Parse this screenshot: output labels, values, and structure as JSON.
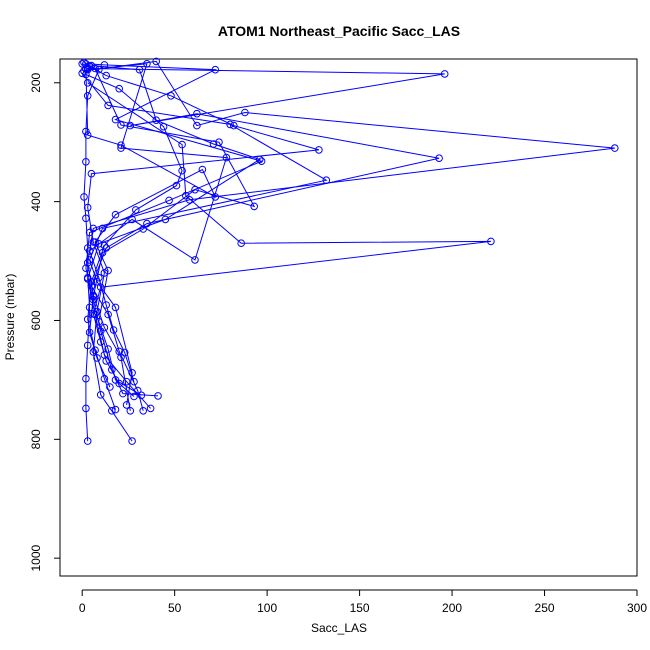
{
  "chart_data": {
    "type": "line",
    "title": "ATOM1 Northeast_Pacific Sacc_LAS",
    "xlabel": "Sacc_LAS",
    "ylabel": "Pressure (mbar)",
    "xlim": [
      -12,
      300
    ],
    "ylim": [
      1030,
      160
    ],
    "y_reversed": true,
    "x_ticks": [
      0,
      50,
      100,
      150,
      200,
      250,
      300
    ],
    "y_ticks": [
      200,
      400,
      600,
      800,
      1000
    ],
    "grid": false,
    "legend": "none",
    "colors": {
      "series": "#0000ff",
      "axis": "#000000"
    },
    "series": [
      {
        "points": [
          [
            0,
            168
          ],
          [
            9,
            178
          ],
          [
            3,
            222
          ],
          [
            2,
            282
          ],
          [
            2,
            333
          ],
          [
            1,
            392
          ],
          [
            2,
            428
          ],
          [
            3,
            478
          ],
          [
            3,
            528
          ],
          [
            4,
            578
          ],
          [
            3,
            642
          ],
          [
            2,
            698
          ],
          [
            2,
            748
          ],
          [
            3,
            803
          ]
        ]
      },
      {
        "points": [
          [
            4,
            172
          ],
          [
            13,
            188
          ],
          [
            48,
            222
          ],
          [
            82,
            272
          ],
          [
            128,
            313
          ],
          [
            5,
            353
          ],
          [
            3,
            410
          ],
          [
            6,
            468
          ],
          [
            12,
            520
          ],
          [
            8,
            585
          ],
          [
            6,
            653
          ],
          [
            10,
            725
          ],
          [
            16,
            752
          ],
          [
            27,
            803
          ]
        ]
      },
      {
        "points": [
          [
            2,
            168
          ],
          [
            12,
            170
          ],
          [
            72,
            178
          ],
          [
            18,
            262
          ],
          [
            97,
            332
          ],
          [
            47,
            398
          ],
          [
            4,
            452
          ],
          [
            2,
            512
          ],
          [
            6,
            565
          ],
          [
            10,
            618
          ],
          [
            16,
            683
          ],
          [
            22,
            723
          ],
          [
            41,
            727
          ]
        ]
      },
      {
        "points": [
          [
            3,
            176
          ],
          [
            196,
            185
          ],
          [
            26,
            272
          ],
          [
            62,
            252
          ],
          [
            193,
            327
          ],
          [
            35,
            437
          ],
          [
            13,
            478
          ],
          [
            5,
            542
          ],
          [
            14,
            590
          ],
          [
            20,
            652
          ],
          [
            30,
            718
          ],
          [
            33,
            752
          ]
        ]
      },
      {
        "points": [
          [
            1,
            180
          ],
          [
            40,
            164
          ],
          [
            62,
            272
          ],
          [
            88,
            250
          ],
          [
            288,
            310
          ],
          [
            58,
            397
          ],
          [
            6,
            445
          ],
          [
            3,
            503
          ],
          [
            6,
            558
          ],
          [
            12,
            612
          ],
          [
            21,
            662
          ],
          [
            26,
            752
          ]
        ]
      },
      {
        "points": [
          [
            0,
            184
          ],
          [
            14,
            238
          ],
          [
            80,
            270
          ],
          [
            132,
            364
          ],
          [
            11,
            445
          ],
          [
            4,
            498
          ],
          [
            8,
            535
          ],
          [
            18,
            578
          ],
          [
            27,
            688
          ],
          [
            24,
            742
          ]
        ]
      },
      {
        "points": [
          [
            2,
            177
          ],
          [
            3,
            288
          ],
          [
            21,
            305
          ],
          [
            72,
            392
          ],
          [
            65,
            346
          ],
          [
            18,
            422
          ],
          [
            7,
            468
          ],
          [
            14,
            516
          ],
          [
            9,
            602
          ],
          [
            14,
            648
          ],
          [
            18,
            700
          ],
          [
            32,
            726
          ]
        ]
      },
      {
        "points": [
          [
            3,
            200
          ],
          [
            54,
            304
          ],
          [
            56,
            390
          ],
          [
            86,
            470
          ],
          [
            221,
            467
          ],
          [
            10,
            544
          ],
          [
            6,
            589
          ],
          [
            10,
            636
          ],
          [
            13,
            668
          ],
          [
            20,
            706
          ],
          [
            28,
            728
          ]
        ]
      },
      {
        "points": [
          [
            3,
            178
          ],
          [
            35,
            168
          ],
          [
            21,
            310
          ],
          [
            78,
            326
          ],
          [
            61,
            498
          ],
          [
            27,
            430
          ],
          [
            4,
            483
          ],
          [
            9,
            528
          ],
          [
            13,
            574
          ],
          [
            17,
            616
          ],
          [
            23,
            654
          ],
          [
            28,
            703
          ]
        ]
      },
      {
        "points": [
          [
            1,
            166
          ],
          [
            7,
            176
          ],
          [
            21,
            271
          ],
          [
            74,
            300
          ],
          [
            93,
            408
          ],
          [
            61,
            380
          ],
          [
            33,
            446
          ],
          [
            11,
            486
          ],
          [
            6,
            560
          ],
          [
            4,
            620
          ],
          [
            8,
            663
          ],
          [
            15,
            712
          ]
        ]
      },
      {
        "points": [
          [
            5,
            171
          ],
          [
            31,
            178
          ],
          [
            40,
            263
          ],
          [
            71,
            303
          ],
          [
            96,
            329
          ],
          [
            45,
            430
          ],
          [
            9,
            471
          ],
          [
            3,
            530
          ],
          [
            7,
            590
          ],
          [
            12,
            658
          ],
          [
            24,
            703
          ],
          [
            37,
            748
          ]
        ]
      },
      {
        "points": [
          [
            2,
            186
          ],
          [
            20,
            210
          ],
          [
            44,
            274
          ],
          [
            54,
            348
          ],
          [
            51,
            373
          ],
          [
            29,
            414
          ],
          [
            12,
            474
          ],
          [
            5,
            535
          ],
          [
            3,
            598
          ],
          [
            7,
            650
          ],
          [
            12,
            698
          ],
          [
            18,
            750
          ]
        ]
      }
    ]
  }
}
